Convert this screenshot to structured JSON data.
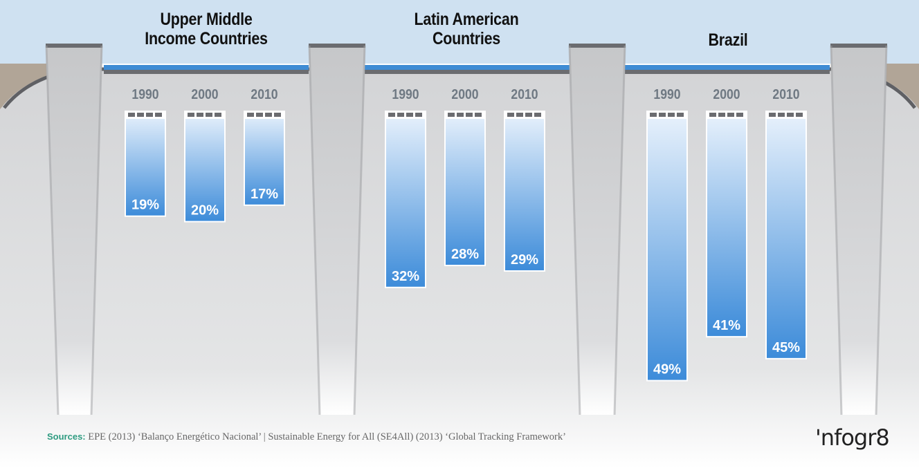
{
  "chart_data": {
    "type": "bar",
    "unit": "%",
    "groups": [
      {
        "title": [
          "Upper Middle",
          "Income Countries"
        ],
        "categories": [
          "1990",
          "2000",
          "2010"
        ],
        "values": [
          19,
          20,
          17
        ]
      },
      {
        "title": [
          "Latin American",
          "Countries"
        ],
        "categories": [
          "1990",
          "2000",
          "2010"
        ],
        "values": [
          32,
          28,
          29
        ]
      },
      {
        "title": [
          "Brazil"
        ],
        "categories": [
          "1990",
          "2000",
          "2010"
        ],
        "values": [
          49,
          41,
          45
        ]
      }
    ],
    "ylim": [
      0,
      50
    ]
  },
  "footer": {
    "sources_label": "Sources:",
    "sources_text": " EPE (2013) ‘Balanço Energético Nacional’ | Sustainable Energy for All (SE4All) (2013) ‘Global Tracking Framework’",
    "logo": "'nfogr8"
  },
  "colors": {
    "sky": "#cfe1f1",
    "wall": "#d7d8da",
    "pillar": "#c9cacc",
    "pillar_edge": "#6b6c70",
    "water_line": "#3f8cd4",
    "bar_top": "#e6f0fb",
    "bar_bottom": "#3c8bd9",
    "year_text": "#6f7983",
    "accent_green": "#2e9b80"
  }
}
